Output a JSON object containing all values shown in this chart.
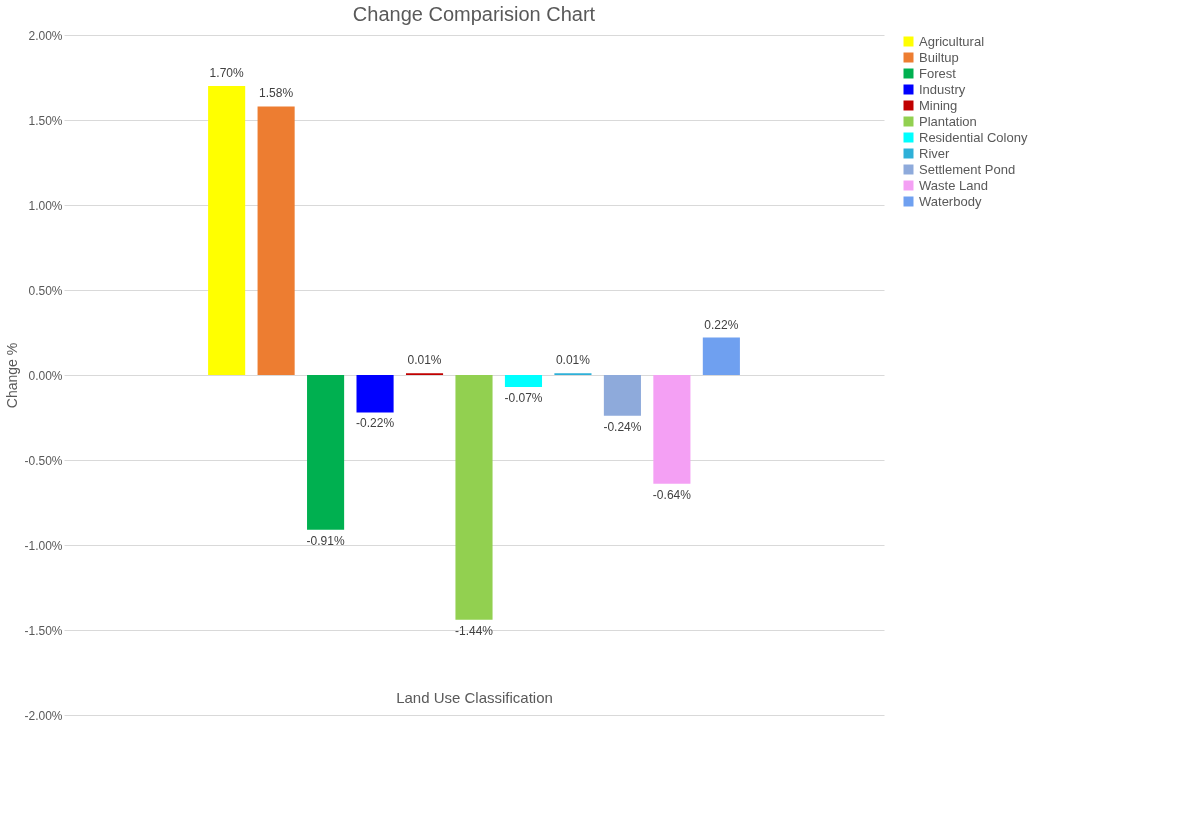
{
  "chart_data": {
    "type": "bar",
    "title": "Change Comparision Chart",
    "xlabel": "Land Use Classification",
    "ylabel": "Change %",
    "categories": [
      null
    ],
    "series": [
      {
        "name": "Agricultural",
        "color": "#ffff00",
        "values": [
          1.7
        ],
        "value_labels": [
          "1.70%"
        ]
      },
      {
        "name": "Builtup",
        "color": "#ed7d31",
        "values": [
          1.58
        ],
        "value_labels": [
          "1.58%"
        ]
      },
      {
        "name": "Forest",
        "color": "#00b050",
        "values": [
          -0.91
        ],
        "value_labels": [
          "-0.91%"
        ]
      },
      {
        "name": "Industry",
        "color": "#0000ff",
        "values": [
          -0.22
        ],
        "value_labels": [
          "-0.22%"
        ]
      },
      {
        "name": "Mining",
        "color": "#c00000",
        "values": [
          0.01
        ],
        "value_labels": [
          "0.01%"
        ]
      },
      {
        "name": "Plantation",
        "color": "#92d050",
        "values": [
          -1.44
        ],
        "value_labels": [
          "-1.44%"
        ]
      },
      {
        "name": "Residential Colony",
        "color": "#00ffff",
        "values": [
          -0.07
        ],
        "value_labels": [
          "-0.07%"
        ]
      },
      {
        "name": "River",
        "color": "#2eb0d8",
        "values": [
          0.01
        ],
        "value_labels": [
          "0.01%"
        ]
      },
      {
        "name": "Settlement Pond",
        "color": "#8eaadb",
        "values": [
          -0.24
        ],
        "value_labels": [
          "-0.24%"
        ]
      },
      {
        "name": "Waste Land",
        "color": "#f4a0f4",
        "values": [
          -0.64
        ],
        "value_labels": [
          "-0.64%"
        ]
      },
      {
        "name": "Waterbody",
        "color": "#6fa0f0",
        "values": [
          0.22
        ],
        "value_labels": [
          "0.22%"
        ]
      }
    ],
    "ylim": [
      -2,
      2
    ],
    "yticks": [
      {
        "value": -2,
        "label": "-2.00%"
      },
      {
        "value": -1.5,
        "label": "-1.50%"
      },
      {
        "value": -1,
        "label": "-1.00%"
      },
      {
        "value": -0.5,
        "label": "-0.50%"
      },
      {
        "value": 0,
        "label": "0.00%"
      },
      {
        "value": 0.5,
        "label": "0.50%"
      },
      {
        "value": 1,
        "label": "1.00%"
      },
      {
        "value": 1.5,
        "label": "1.50%"
      },
      {
        "value": 2,
        "label": "2.00%"
      }
    ],
    "grid": "y",
    "legend": "right",
    "tick_labels": "y"
  }
}
